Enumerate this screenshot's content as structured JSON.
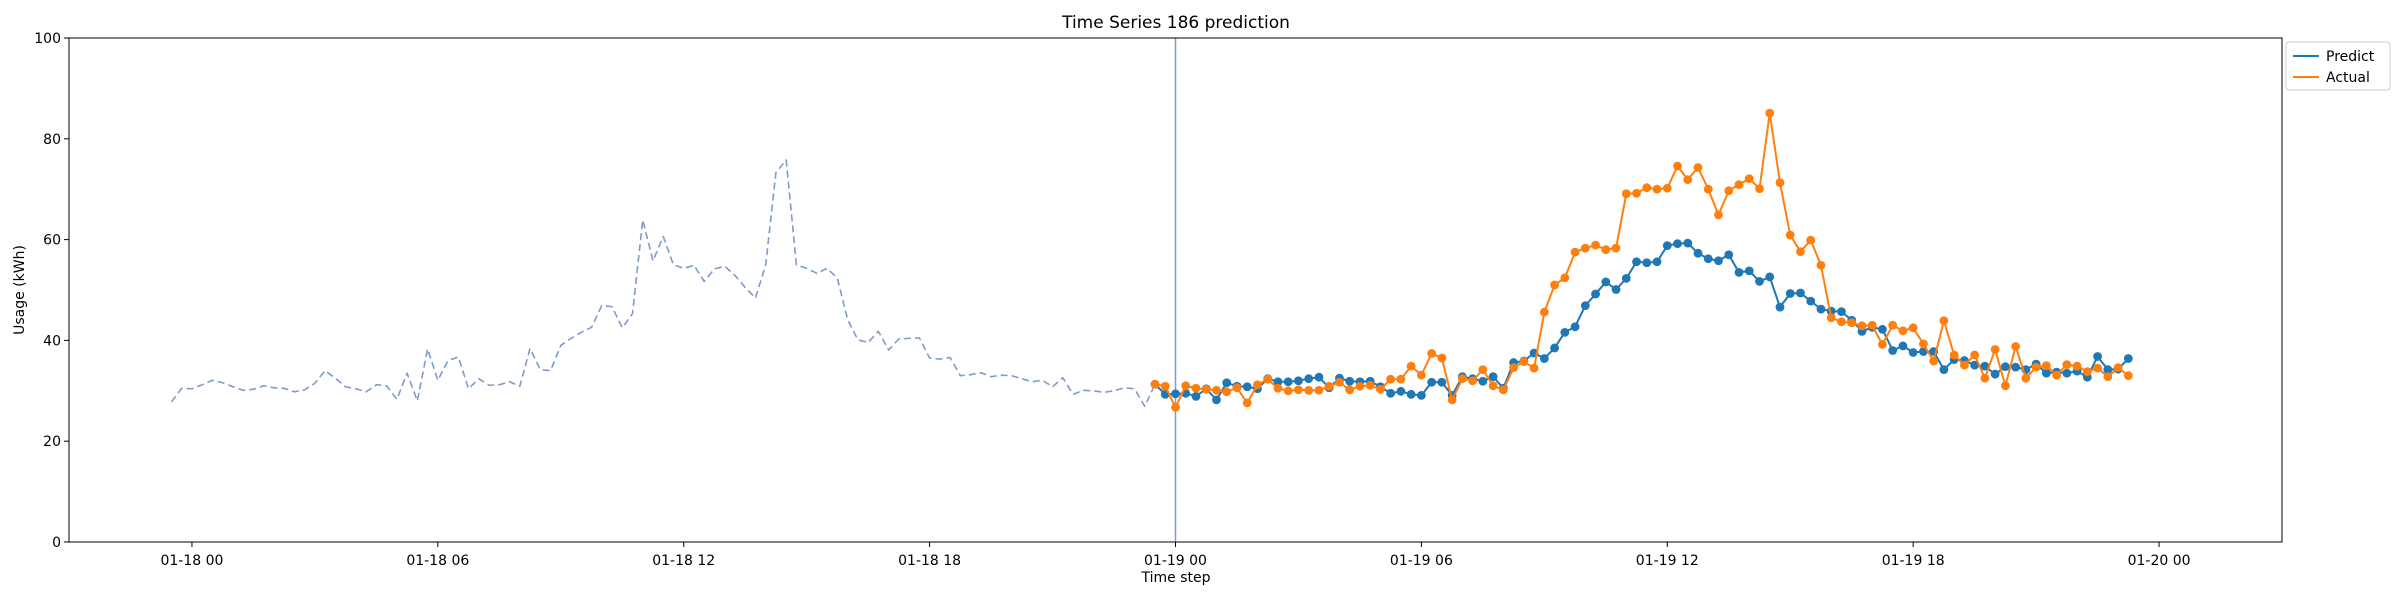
{
  "chart_data": {
    "type": "line",
    "title": "Time Series 186 prediction",
    "xlabel": "Time step",
    "ylabel": "Usage (kWh)",
    "ylim": [
      0,
      100
    ],
    "xlim_hours": [
      -3.0,
      51.0
    ],
    "x_tick_labels": [
      "01-18 00",
      "01-18 06",
      "01-18 12",
      "01-18 18",
      "01-19 00",
      "01-19 06",
      "01-19 12",
      "01-19 18",
      "01-20 00"
    ],
    "y_tick_labels": [
      "0",
      "20",
      "40",
      "60",
      "80",
      "100"
    ],
    "grid": false,
    "legend_position": "top-right",
    "legend": [
      "Predict",
      "Actual"
    ],
    "colors": {
      "predict": "#1f77b4",
      "actual": "#ff7f0e",
      "history": "#7e9bc9",
      "divider": "#7e9bc9"
    },
    "history_start": "01-18 00:00",
    "step_minutes": 15,
    "divider_time": "01-19 00:00",
    "series": [
      {
        "name": "",
        "style": "dashed",
        "start": "01-17 23:30",
        "step_minutes": 15,
        "values": [
          27.8,
          30.5,
          30.4,
          31.2,
          32.1,
          31.6,
          30.8,
          30.1,
          30.3,
          31.0,
          30.6,
          30.5,
          29.8,
          30.2,
          31.5,
          34.0,
          32.5,
          30.8,
          30.4,
          29.8,
          31.2,
          31.0,
          28.3,
          33.5,
          28.0,
          38.3,
          32.1,
          36.0,
          36.7,
          30.4,
          32.4,
          31.1,
          31.2,
          31.8,
          30.9,
          38.4,
          34.2,
          34.0,
          39.0,
          40.4,
          41.6,
          42.6,
          46.9,
          46.7,
          42.5,
          45.3,
          63.9,
          55.8,
          60.6,
          55.0,
          54.3,
          54.9,
          51.7,
          54.2,
          54.7,
          52.9,
          50.5,
          48.4,
          55.0,
          73.3,
          75.8,
          55.0,
          54.3,
          53.3,
          54.3,
          52.3,
          44.1,
          40.1,
          39.6,
          41.8,
          38.1,
          40.3,
          40.4,
          40.5,
          36.5,
          36.3,
          36.6,
          33.0,
          33.2,
          33.6,
          32.8,
          33.1,
          33.0,
          32.4,
          31.8,
          32.1,
          30.8,
          32.6,
          29.3,
          30.1,
          30.0,
          29.7,
          30.0,
          30.6,
          30.4,
          26.9,
          31.3
        ]
      },
      {
        "name": "Predict",
        "start": "01-18 23:30",
        "step_minutes": 15,
        "values": [
          31.3,
          29.3,
          29.4,
          29.5,
          28.9,
          30.4,
          28.2,
          31.6,
          30.9,
          30.8,
          30.4,
          32.4,
          31.8,
          31.8,
          32.0,
          32.4,
          32.7,
          30.6,
          32.5,
          31.9,
          31.8,
          31.9,
          30.8,
          29.5,
          29.9,
          29.3,
          29.1,
          31.7,
          31.7,
          29.1,
          32.8,
          32.4,
          31.9,
          32.8,
          30.5,
          35.6,
          35.9,
          37.5,
          36.4,
          38.5,
          41.6,
          42.7,
          46.9,
          49.2,
          51.6,
          50.1,
          52.3,
          55.6,
          55.4,
          55.6,
          58.8,
          59.2,
          59.3,
          57.3,
          56.2,
          55.8,
          57.0,
          53.5,
          53.8,
          51.7,
          52.6,
          46.6,
          49.3,
          49.4,
          47.8,
          46.2,
          45.8,
          45.7,
          44.0,
          41.8,
          42.6,
          42.2,
          38.0,
          38.9,
          37.6,
          37.8,
          37.8,
          34.2,
          36.2,
          36.0,
          35.1,
          34.9,
          33.3,
          34.8,
          34.7,
          34.2,
          35.3,
          33.5,
          33.7,
          33.5,
          33.9,
          32.7,
          36.8,
          34.2,
          34.3,
          36.4
        ]
      },
      {
        "name": "Actual",
        "start": "01-18 23:30",
        "step_minutes": 15,
        "values": [
          31.3,
          30.9,
          26.7,
          31.0,
          30.5,
          30.3,
          30.1,
          29.8,
          30.6,
          27.6,
          31.2,
          32.3,
          30.5,
          30.0,
          30.2,
          30.1,
          30.1,
          30.9,
          31.7,
          30.2,
          30.9,
          31.1,
          30.3,
          32.3,
          32.3,
          34.9,
          33.1,
          37.4,
          36.5,
          28.2,
          32.4,
          32.0,
          34.2,
          31.0,
          30.2,
          34.6,
          35.8,
          34.5,
          45.6,
          51.0,
          52.4,
          57.5,
          58.3,
          58.9,
          58.0,
          58.3,
          69.1,
          69.2,
          70.3,
          70.0,
          70.2,
          74.6,
          71.9,
          74.3,
          70.0,
          64.9,
          69.7,
          70.9,
          72.1,
          70.1,
          85.1,
          71.3,
          60.9,
          57.6,
          59.9,
          54.9,
          44.5,
          43.7,
          43.5,
          42.9,
          43.0,
          39.2,
          43.0,
          41.9,
          42.5,
          39.3,
          35.9,
          43.9,
          37.1,
          35.1,
          37.1,
          32.5,
          38.2,
          31.0,
          38.8,
          32.5,
          34.7,
          35.0,
          33.1,
          35.2,
          34.9,
          33.8,
          34.5,
          32.8,
          34.6,
          33.0
        ]
      }
    ]
  }
}
